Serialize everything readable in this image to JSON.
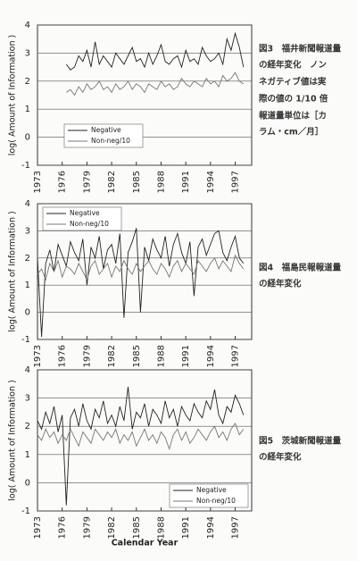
{
  "chart_data": [
    {
      "type": "line",
      "y_label": "log( Amount of Information )",
      "xlim": [
        1973,
        1999
      ],
      "xticks": [
        1973,
        1976,
        1979,
        1982,
        1985,
        1988,
        1991,
        1994,
        1997
      ],
      "ylim": [
        -1,
        4
      ],
      "yticks": [
        -1,
        0,
        1,
        2,
        3,
        4
      ],
      "grid": true,
      "legend": "lower left",
      "x": [
        1976.5,
        1977,
        1977.5,
        1978,
        1978.5,
        1979,
        1979.5,
        1980,
        1980.5,
        1981,
        1981.5,
        1982,
        1982.5,
        1983,
        1983.5,
        1984,
        1984.5,
        1985,
        1985.5,
        1986,
        1986.5,
        1987,
        1987.5,
        1988,
        1988.5,
        1989,
        1989.5,
        1990,
        1990.5,
        1991,
        1991.5,
        1992,
        1992.5,
        1993,
        1993.5,
        1994,
        1994.5,
        1995,
        1995.5,
        1996,
        1996.5,
        1997,
        1997.5,
        1998
      ],
      "series": [
        {
          "name": "Negative",
          "color": "#222222",
          "values": [
            2.6,
            2.4,
            2.5,
            2.9,
            2.7,
            3.1,
            2.5,
            3.4,
            2.6,
            2.9,
            2.7,
            2.5,
            3.0,
            2.8,
            2.6,
            2.9,
            3.2,
            2.7,
            2.8,
            2.5,
            3.0,
            2.6,
            2.9,
            3.3,
            2.7,
            2.6,
            2.8,
            2.9,
            2.5,
            3.1,
            2.7,
            2.8,
            2.6,
            3.2,
            2.9,
            2.7,
            2.8,
            3.0,
            2.6,
            3.5,
            3.1,
            3.7,
            3.2,
            2.5
          ]
        },
        {
          "name": "Non-neg/10",
          "color": "#777777",
          "values": [
            1.6,
            1.7,
            1.5,
            1.8,
            1.6,
            1.9,
            1.7,
            1.8,
            2.0,
            1.7,
            1.8,
            1.6,
            1.9,
            1.7,
            1.8,
            2.0,
            1.7,
            1.9,
            1.8,
            1.6,
            1.9,
            1.8,
            1.7,
            2.0,
            1.8,
            1.9,
            1.7,
            1.8,
            2.1,
            1.9,
            1.8,
            2.0,
            1.9,
            1.8,
            2.1,
            1.9,
            2.0,
            1.8,
            2.2,
            2.0,
            2.1,
            2.3,
            2.0,
            1.9
          ]
        }
      ]
    },
    {
      "type": "line",
      "y_label": "log( Amount of Information )",
      "xlim": [
        1973,
        1999
      ],
      "xticks": [
        1973,
        1976,
        1979,
        1982,
        1985,
        1988,
        1991,
        1994,
        1997
      ],
      "ylim": [
        -1,
        4
      ],
      "yticks": [
        -1,
        0,
        1,
        2,
        3,
        4
      ],
      "grid": true,
      "legend": "upper left",
      "x": [
        1973,
        1973.5,
        1974,
        1974.5,
        1975,
        1975.5,
        1976,
        1976.5,
        1977,
        1977.5,
        1978,
        1978.5,
        1979,
        1979.5,
        1980,
        1980.5,
        1981,
        1981.5,
        1982,
        1982.5,
        1983,
        1983.5,
        1984,
        1984.5,
        1985,
        1985.5,
        1986,
        1986.5,
        1987,
        1987.5,
        1988,
        1988.5,
        1989,
        1989.5,
        1990,
        1990.5,
        1991,
        1991.5,
        1992,
        1992.5,
        1993,
        1993.5,
        1994,
        1994.5,
        1995,
        1995.5,
        1996,
        1996.5,
        1997,
        1997.5,
        1998
      ],
      "series": [
        {
          "name": "Negative",
          "color": "#222222",
          "values": [
            2.0,
            -0.9,
            1.8,
            2.3,
            1.5,
            2.5,
            2.1,
            1.7,
            2.6,
            2.2,
            1.9,
            2.7,
            1.0,
            2.4,
            2.0,
            2.8,
            1.6,
            2.3,
            2.5,
            1.8,
            2.9,
            -0.2,
            2.2,
            2.6,
            3.1,
            0.0,
            2.4,
            1.9,
            2.7,
            2.3,
            2.0,
            2.8,
            1.7,
            2.5,
            2.9,
            2.2,
            1.8,
            2.6,
            0.6,
            2.4,
            2.7,
            2.1,
            2.5,
            2.9,
            3.0,
            2.2,
            1.9,
            2.4,
            2.8,
            2.0,
            1.8
          ]
        },
        {
          "name": "Non-neg/10",
          "color": "#777777",
          "values": [
            1.4,
            1.6,
            1.2,
            1.8,
            1.5,
            1.9,
            1.3,
            1.7,
            1.6,
            1.4,
            1.8,
            1.5,
            1.2,
            1.7,
            1.9,
            1.4,
            1.6,
            1.8,
            1.3,
            1.7,
            1.5,
            1.9,
            1.6,
            1.4,
            1.8,
            1.5,
            1.7,
            1.9,
            1.6,
            1.4,
            1.8,
            1.6,
            1.3,
            1.7,
            1.9,
            1.5,
            1.8,
            1.6,
            1.4,
            1.9,
            1.7,
            1.5,
            1.8,
            2.0,
            1.6,
            1.9,
            1.7,
            1.5,
            2.1,
            1.8,
            1.6
          ]
        }
      ]
    },
    {
      "type": "line",
      "y_label": "log( Amount of Information )",
      "x_label": "Calendar Year",
      "xlim": [
        1973,
        1999
      ],
      "xticks": [
        1973,
        1976,
        1979,
        1982,
        1985,
        1988,
        1991,
        1994,
        1997
      ],
      "ylim": [
        -1,
        4
      ],
      "yticks": [
        -1,
        0,
        1,
        2,
        3,
        4
      ],
      "grid": true,
      "legend": "lower right",
      "x": [
        1973,
        1973.5,
        1974,
        1974.5,
        1975,
        1975.5,
        1976,
        1976.5,
        1977,
        1977.5,
        1978,
        1978.5,
        1979,
        1979.5,
        1980,
        1980.5,
        1981,
        1981.5,
        1982,
        1982.5,
        1983,
        1983.5,
        1984,
        1984.5,
        1985,
        1985.5,
        1986,
        1986.5,
        1987,
        1987.5,
        1988,
        1988.5,
        1989,
        1989.5,
        1990,
        1990.5,
        1991,
        1991.5,
        1992,
        1992.5,
        1993,
        1993.5,
        1994,
        1994.5,
        1995,
        1995.5,
        1996,
        1996.5,
        1997,
        1997.5,
        1998
      ],
      "series": [
        {
          "name": "Negative",
          "color": "#222222",
          "values": [
            2.2,
            1.9,
            2.5,
            2.1,
            2.7,
            1.8,
            2.4,
            -0.8,
            2.3,
            2.6,
            2.0,
            2.8,
            2.2,
            1.9,
            2.6,
            2.3,
            2.9,
            2.1,
            2.4,
            2.0,
            2.7,
            2.2,
            3.4,
            1.9,
            2.5,
            2.3,
            2.8,
            2.0,
            2.6,
            2.4,
            2.1,
            2.9,
            2.3,
            2.6,
            2.0,
            2.7,
            2.4,
            2.2,
            2.8,
            2.5,
            2.3,
            2.9,
            2.6,
            3.3,
            2.4,
            2.1,
            2.7,
            2.5,
            3.1,
            2.8,
            2.4
          ]
        },
        {
          "name": "Non-neg/10",
          "color": "#777777",
          "values": [
            1.7,
            1.5,
            1.9,
            1.6,
            1.8,
            1.4,
            1.7,
            1.5,
            1.9,
            1.6,
            1.3,
            1.8,
            1.6,
            1.4,
            1.9,
            1.7,
            1.5,
            1.8,
            1.6,
            1.9,
            1.4,
            1.7,
            1.5,
            1.8,
            1.3,
            1.6,
            1.9,
            1.5,
            1.7,
            1.4,
            1.8,
            1.6,
            1.2,
            1.7,
            1.9,
            1.5,
            1.8,
            1.4,
            1.6,
            1.9,
            1.7,
            1.5,
            1.8,
            2.0,
            1.6,
            1.8,
            1.5,
            1.9,
            2.1,
            1.7,
            1.9
          ]
        }
      ]
    }
  ],
  "captions": [
    [
      "図3　福井新聞報道量",
      "の経年変化　ノン",
      "ネガティブ値は実",
      "際の値の 1/10 倍",
      "報道量単位は［カ",
      "ラム・cm／月］"
    ],
    [
      "図4　福島民報報道量",
      "の経年変化"
    ],
    [
      "図5　茨城新聞報道量",
      "の経年変化"
    ]
  ]
}
